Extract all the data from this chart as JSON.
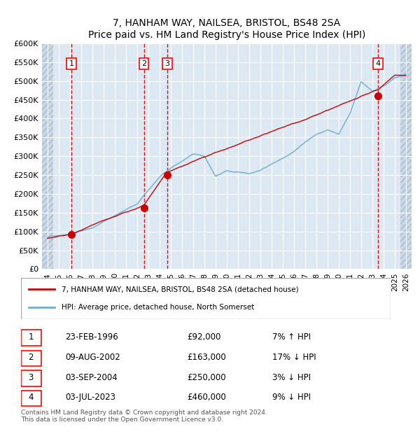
{
  "title": "7, HANHAM WAY, NAILSEA, BRISTOL, BS48 2SA",
  "subtitle": "Price paid vs. HM Land Registry's House Price Index (HPI)",
  "ylabel": "",
  "xlabel": "",
  "ylim": [
    0,
    600000
  ],
  "yticks": [
    0,
    50000,
    100000,
    150000,
    200000,
    250000,
    300000,
    350000,
    400000,
    450000,
    500000,
    550000,
    600000
  ],
  "ytick_labels": [
    "£0",
    "£50K",
    "£100K",
    "£150K",
    "£200K",
    "£250K",
    "£300K",
    "£350K",
    "£400K",
    "£450K",
    "£500K",
    "£550K",
    "£600K"
  ],
  "xlim_start": 1993.5,
  "xlim_end": 2026.5,
  "xticks": [
    1994,
    1995,
    1996,
    1997,
    1998,
    1999,
    2000,
    2001,
    2002,
    2003,
    2004,
    2005,
    2006,
    2007,
    2008,
    2009,
    2010,
    2011,
    2012,
    2013,
    2014,
    2015,
    2016,
    2017,
    2018,
    2019,
    2020,
    2021,
    2022,
    2023,
    2024,
    2025,
    2026
  ],
  "hpi_color": "#6baed6",
  "price_color": "#cc0000",
  "bg_color": "#dce9f5",
  "grid_color": "#ffffff",
  "sale_points": [
    {
      "year": 1996.12,
      "price": 92000,
      "label": "1"
    },
    {
      "year": 2002.6,
      "price": 163000,
      "label": "2"
    },
    {
      "year": 2004.67,
      "price": 250000,
      "label": "3"
    },
    {
      "year": 2023.5,
      "price": 460000,
      "label": "4"
    }
  ],
  "vline_color": "#cc0000",
  "legend_entries": [
    {
      "label": "7, HANHAM WAY, NAILSEA, BRISTOL, BS48 2SA (detached house)",
      "color": "#cc0000"
    },
    {
      "label": "HPI: Average price, detached house, North Somerset",
      "color": "#6baed6"
    }
  ],
  "table_data": [
    {
      "num": "1",
      "date": "23-FEB-1996",
      "price": "£92,000",
      "change": "7% ↑ HPI"
    },
    {
      "num": "2",
      "date": "09-AUG-2002",
      "price": "£163,000",
      "change": "17% ↓ HPI"
    },
    {
      "num": "3",
      "date": "03-SEP-2004",
      "price": "£250,000",
      "change": "3% ↓ HPI"
    },
    {
      "num": "4",
      "date": "03-JUL-2023",
      "price": "£460,000",
      "change": "9% ↓ HPI"
    }
  ],
  "footnote": "Contains HM Land Registry data © Crown copyright and database right 2024.\nThis data is licensed under the Open Government Licence v3.0.",
  "hatch_color": "#c8d8e8"
}
